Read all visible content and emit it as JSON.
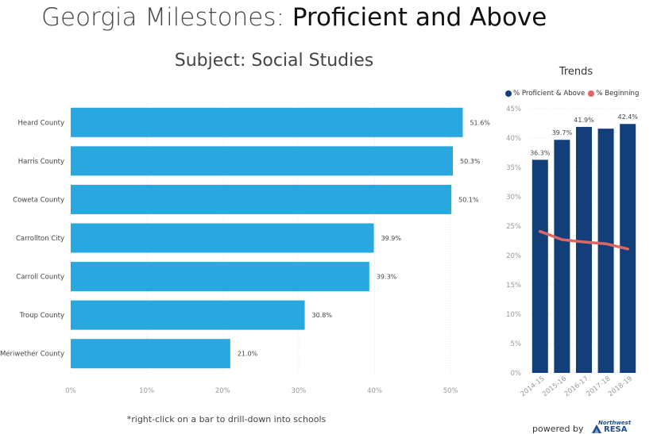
{
  "header": {
    "title_lead": "Georgia Milestones: ",
    "title_bold": "Proficient and Above",
    "subtitle": "Subject: Social Studies"
  },
  "footer": {
    "footnote": "*right-click on a bar to drill-down into schools",
    "powered_by": "powered by",
    "logo_text_top": "Northwest",
    "logo_text_bottom": "RESA"
  },
  "colors": {
    "main_bar": "#29a8e0",
    "trend_bar": "#123f7a",
    "trend_line": "#e06666"
  },
  "chart_data": [
    {
      "type": "bar",
      "orientation": "horizontal",
      "categories": [
        "Heard County",
        "Harris County",
        "Coweta County",
        "Carrollton City",
        "Carroll County",
        "Troup County",
        "Meriwether County"
      ],
      "values": [
        51.6,
        50.3,
        50.1,
        39.9,
        39.3,
        30.8,
        21.0
      ],
      "data_labels": [
        "51.6%",
        "50.3%",
        "50.1%",
        "39.9%",
        "39.3%",
        "30.8%",
        "21.0%"
      ],
      "xlim": [
        0,
        55
      ],
      "x_ticks": [
        0,
        10,
        20,
        30,
        40,
        50
      ],
      "x_tick_labels": [
        "0%",
        "10%",
        "20%",
        "30%",
        "40%",
        "50%"
      ],
      "grid": true
    },
    {
      "type": "bar",
      "title": "Trends",
      "categories": [
        "2014-15",
        "2015-16",
        "2016-17",
        "2017-18",
        "2018-19"
      ],
      "series": [
        {
          "name": "% Proficient & Above",
          "type": "bar",
          "values": [
            36.3,
            39.7,
            41.9,
            41.6,
            42.4
          ],
          "data_labels": [
            "36.3%",
            "39.7%",
            "41.9%",
            "",
            "42.4%"
          ]
        },
        {
          "name": "% Beginning",
          "type": "line",
          "values": [
            24.1,
            22.7,
            22.3,
            22.0,
            21.1
          ]
        }
      ],
      "ylim": [
        0,
        45
      ],
      "y_ticks": [
        0,
        5,
        10,
        15,
        20,
        25,
        30,
        35,
        40,
        45
      ],
      "y_tick_labels": [
        "0%",
        "5%",
        "10%",
        "15%",
        "20%",
        "25%",
        "30%",
        "35%",
        "40%",
        "45%"
      ],
      "legend_position": "top-left",
      "grid": true
    }
  ]
}
